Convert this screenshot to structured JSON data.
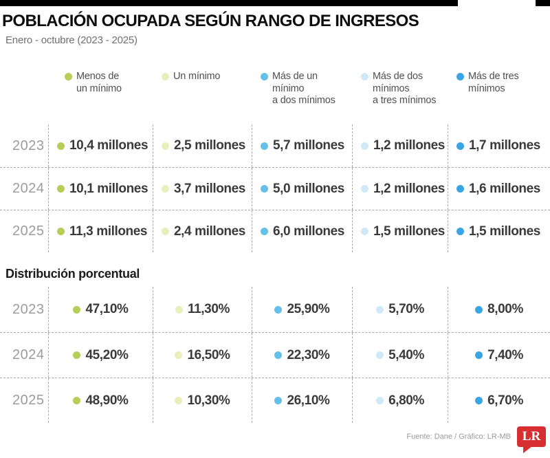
{
  "header": {
    "title": "POBLACIÓN OCUPADA SEGÚN RANGO DE INGRESOS",
    "subtitle": "Enero - octubre (2023 - 2025)"
  },
  "legend": [
    {
      "name": "menos-de-un-minimo",
      "label": "Menos de\nun mínimo",
      "color": "#b6cd58"
    },
    {
      "name": "un-minimo",
      "label": "Un mínimo",
      "color": "#e9efba"
    },
    {
      "name": "mas-de-uno-a-dos",
      "label": "Más de un mínimo\na dos mínimos",
      "color": "#64c0e9"
    },
    {
      "name": "mas-de-dos-a-tres",
      "label": "Más de dos\nmínimos\na tres mínimos",
      "color": "#cfe9f8"
    },
    {
      "name": "mas-de-tres",
      "label": "Más de tres\nmínimos",
      "color": "#3aa5e4"
    }
  ],
  "millions_rows": [
    {
      "year": "2023",
      "values": [
        "10,4 millones",
        "2,5 millones",
        "5,7 millones",
        "1,2 millones",
        "1,7 millones"
      ]
    },
    {
      "year": "2024",
      "values": [
        "10,1 millones",
        "3,7 millones",
        "5,0 millones",
        "1,2 millones",
        "1,6 millones"
      ]
    },
    {
      "year": "2025",
      "values": [
        "11,3 millones",
        "2,4 millones",
        "6,0 millones",
        "1,5 millones",
        "1,5 millones"
      ]
    }
  ],
  "percent_section": {
    "title": "Distribución porcentual",
    "rows": [
      {
        "year": "2023",
        "values": [
          "47,10%",
          "11,30%",
          "25,90%",
          "5,70%",
          "8,00%"
        ]
      },
      {
        "year": "2024",
        "values": [
          "45,20%",
          "16,50%",
          "22,30%",
          "5,40%",
          "7,40%"
        ]
      },
      {
        "year": "2025",
        "values": [
          "48,90%",
          "10,30%",
          "26,10%",
          "6,80%",
          "6,70%"
        ]
      }
    ]
  },
  "footer": {
    "source": "Fuente: Dane / Gráfico: LR-MB",
    "logo_text": "LR",
    "logo_color": "#d62e31"
  },
  "chart_data": {
    "type": "table",
    "title": "POBLACIÓN OCUPADA SEGÚN RANGO DE INGRESOS",
    "subtitle": "Enero - octubre (2023 - 2025)",
    "categories": [
      "Menos de un mínimo",
      "Un mínimo",
      "Más de un mínimo a dos mínimos",
      "Más de dos mínimos a tres mínimos",
      "Más de tres mínimos"
    ],
    "category_colors": [
      "#b6cd58",
      "#e9efba",
      "#64c0e9",
      "#cfe9f8",
      "#3aa5e4"
    ],
    "units": [
      "millones de personas",
      "porcentaje"
    ],
    "series_millions": [
      {
        "name": "2023",
        "values": [
          10.4,
          2.5,
          5.7,
          1.2,
          1.7
        ]
      },
      {
        "name": "2024",
        "values": [
          10.1,
          3.7,
          5.0,
          1.2,
          1.6
        ]
      },
      {
        "name": "2025",
        "values": [
          11.3,
          2.4,
          6.0,
          1.5,
          1.5
        ]
      }
    ],
    "series_percent": [
      {
        "name": "2023",
        "values": [
          47.1,
          11.3,
          25.9,
          5.7,
          8.0
        ]
      },
      {
        "name": "2024",
        "values": [
          45.2,
          16.5,
          22.3,
          5.4,
          7.4
        ]
      },
      {
        "name": "2025",
        "values": [
          48.9,
          10.3,
          26.1,
          6.8,
          6.7
        ]
      }
    ],
    "source": "Dane"
  }
}
